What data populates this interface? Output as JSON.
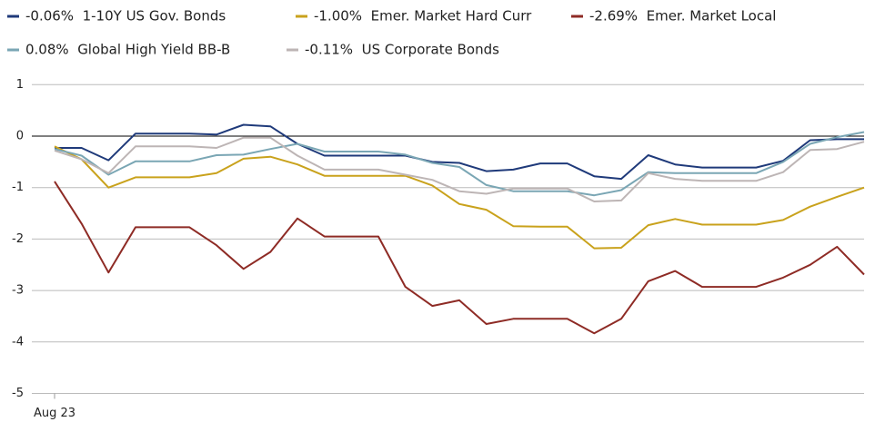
{
  "chart_data": {
    "type": "line",
    "x": [
      "Aug 23",
      null,
      null,
      null,
      null,
      null,
      null,
      null,
      null,
      null,
      null,
      null,
      null,
      null,
      null,
      null,
      null,
      null,
      null,
      null,
      null,
      null,
      null,
      null,
      null,
      null,
      null,
      null,
      null,
      null,
      null
    ],
    "series": [
      {
        "name": "-0.06%  1-10Y US Gov. Bonds",
        "color": "#1f3a7a",
        "values": [
          -0.23,
          -0.23,
          -0.47,
          0.05,
          0.05,
          0.05,
          0.03,
          0.22,
          0.19,
          -0.15,
          -0.38,
          -0.38,
          -0.38,
          -0.38,
          -0.5,
          -0.52,
          -0.68,
          -0.65,
          -0.53,
          -0.53,
          -0.78,
          -0.83,
          -0.37,
          -0.55,
          -0.61,
          -0.61,
          -0.61,
          -0.48,
          -0.08,
          -0.06,
          -0.06
        ]
      },
      {
        "name": "-1.00%  Emer. Market Hard Curr",
        "color": "#c9a21c",
        "values": [
          -0.2,
          -0.45,
          -1.0,
          -0.8,
          -0.8,
          -0.8,
          -0.72,
          -0.44,
          -0.4,
          -0.55,
          -0.77,
          -0.77,
          -0.77,
          -0.77,
          -0.96,
          -1.32,
          -1.43,
          -1.75,
          -1.76,
          -1.76,
          -2.18,
          -2.17,
          -1.73,
          -1.61,
          -1.72,
          -1.72,
          -1.72,
          -1.63,
          -1.37,
          -1.18,
          -1.0
        ]
      },
      {
        "name": "-2.69%  Emer. Market Local",
        "color": "#8e2b25",
        "values": [
          -0.88,
          -1.7,
          -2.65,
          -1.77,
          -1.77,
          -1.77,
          -2.12,
          -2.58,
          -2.25,
          -1.6,
          -1.95,
          -1.95,
          -1.95,
          -2.93,
          -3.3,
          -3.19,
          -3.65,
          -3.55,
          -3.55,
          -3.55,
          -3.83,
          -3.55,
          -2.82,
          -2.62,
          -2.93,
          -2.93,
          -2.93,
          -2.75,
          -2.5,
          -2.15,
          -2.69
        ]
      },
      {
        "name": "0.08%  Global High Yield BB-B",
        "color": "#7aa6b4",
        "values": [
          -0.25,
          -0.38,
          -0.75,
          -0.49,
          -0.49,
          -0.49,
          -0.37,
          -0.36,
          -0.25,
          -0.15,
          -0.3,
          -0.3,
          -0.3,
          -0.36,
          -0.52,
          -0.6,
          -0.95,
          -1.07,
          -1.07,
          -1.07,
          -1.15,
          -1.05,
          -0.7,
          -0.72,
          -0.72,
          -0.72,
          -0.72,
          -0.5,
          -0.15,
          -0.02,
          0.08
        ]
      },
      {
        "name": "-0.11%  US Corporate Bonds",
        "color": "#bdb5b5",
        "values": [
          -0.28,
          -0.45,
          -0.72,
          -0.2,
          -0.2,
          -0.2,
          -0.23,
          -0.03,
          -0.03,
          -0.38,
          -0.65,
          -0.65,
          -0.65,
          -0.75,
          -0.85,
          -1.07,
          -1.12,
          -1.02,
          -1.02,
          -1.02,
          -1.27,
          -1.25,
          -0.72,
          -0.83,
          -0.87,
          -0.87,
          -0.87,
          -0.7,
          -0.27,
          -0.25,
          -0.11
        ]
      }
    ],
    "ylim": [
      -5,
      1
    ],
    "yticks": [
      -5,
      -4,
      -3,
      -2,
      -1,
      0,
      1
    ],
    "grid": true
  }
}
